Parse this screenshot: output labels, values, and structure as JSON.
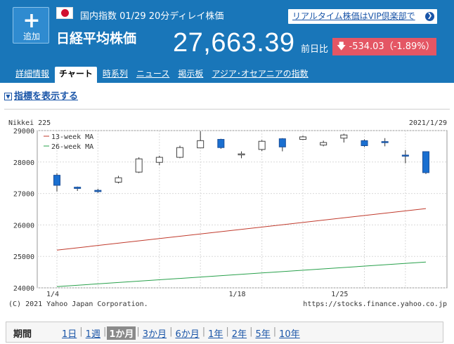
{
  "header": {
    "add_button": {
      "icon": "plus-icon",
      "label": "追加"
    },
    "flag": "japan-flag-icon",
    "market": "国内指数",
    "date": "01/29",
    "delay_note": "20分ディレイ株価",
    "vip_link": "リアルタイム株価はVIP倶楽部で",
    "stock_name": "日経平均株価",
    "price": "27,663.39",
    "change_label": "前日比",
    "change_icon": "arrow-down-icon",
    "change_value": "-534.03（-1.89%）",
    "colors": {
      "band": "#1976b9",
      "change_bg": "#e45664"
    }
  },
  "tabs": [
    {
      "label": "詳細情報",
      "active": false
    },
    {
      "label": "チャート",
      "active": true
    },
    {
      "label": "時系列",
      "active": false
    },
    {
      "label": "ニュース",
      "active": false
    },
    {
      "label": "掲示板",
      "active": false
    },
    {
      "label": "アジア･オセアニアの指数",
      "active": false
    }
  ],
  "indicator_toggle": "指標を表示する",
  "chart_data": {
    "type": "candlestick",
    "title": "Nikkei 225",
    "date_label": "2021/1/29",
    "copyright": "(C) 2021 Yahoo Japan Corporation.",
    "source_url": "https://stocks.finance.yahoo.co.jp",
    "ylim": [
      24000,
      29000
    ],
    "yticks": [
      24000,
      25000,
      26000,
      27000,
      28000,
      29000
    ],
    "xticks": [
      "1/4",
      "1/18",
      "1/25"
    ],
    "legend": [
      {
        "name": "13-week MA",
        "color": "#c0392b"
      },
      {
        "name": "26-week MA",
        "color": "#27a04a"
      }
    ],
    "candles": [
      {
        "open": 27580,
        "high": 27640,
        "low": 27060,
        "close": 27260
      },
      {
        "open": 27200,
        "high": 27220,
        "low": 27080,
        "close": 27160
      },
      {
        "open": 27100,
        "high": 27150,
        "low": 27020,
        "close": 27060
      },
      {
        "open": 27360,
        "high": 27560,
        "low": 27320,
        "close": 27500
      },
      {
        "open": 27680,
        "high": 28150,
        "low": 27650,
        "close": 28100
      },
      {
        "open": 27990,
        "high": 28200,
        "low": 27900,
        "close": 28150
      },
      {
        "open": 28150,
        "high": 28520,
        "low": 28120,
        "close": 28460
      },
      {
        "open": 28450,
        "high": 28980,
        "low": 28440,
        "close": 28680
      },
      {
        "open": 28720,
        "high": 28740,
        "low": 28420,
        "close": 28460
      },
      {
        "open": 28240,
        "high": 28340,
        "low": 28120,
        "close": 28260
      },
      {
        "open": 28400,
        "high": 28700,
        "low": 28350,
        "close": 28660
      },
      {
        "open": 28740,
        "high": 28760,
        "low": 28340,
        "close": 28480
      },
      {
        "open": 28720,
        "high": 28840,
        "low": 28700,
        "close": 28800
      },
      {
        "open": 28540,
        "high": 28680,
        "low": 28500,
        "close": 28620
      },
      {
        "open": 28760,
        "high": 28900,
        "low": 28620,
        "close": 28860
      },
      {
        "open": 28680,
        "high": 28720,
        "low": 28480,
        "close": 28520
      },
      {
        "open": 28650,
        "high": 28760,
        "low": 28500,
        "close": 28640
      },
      {
        "open": 28220,
        "high": 28380,
        "low": 27960,
        "close": 28200
      },
      {
        "open": 28330,
        "high": 28340,
        "low": 27620,
        "close": 27663
      }
    ],
    "ma13": [
      25200,
      26520
    ],
    "ma26": [
      24040,
      24820
    ],
    "grid": true
  },
  "periods": {
    "title": "期間",
    "items": [
      {
        "label": "1日",
        "active": false
      },
      {
        "label": "1週",
        "active": false
      },
      {
        "label": "1か月",
        "active": true
      },
      {
        "label": "3か月",
        "active": false
      },
      {
        "label": "6か月",
        "active": false
      },
      {
        "label": "1年",
        "active": false
      },
      {
        "label": "2年",
        "active": false
      },
      {
        "label": "5年",
        "active": false
      },
      {
        "label": "10年",
        "active": false
      }
    ]
  }
}
